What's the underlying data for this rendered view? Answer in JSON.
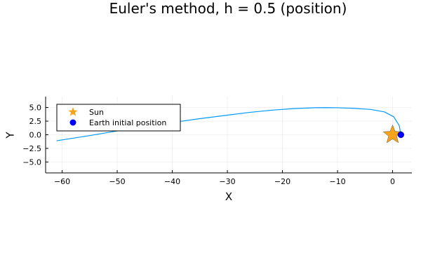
{
  "chart_data": {
    "type": "line",
    "title": "Euler's method, h = 0.5 (position)",
    "xlabel": "X",
    "ylabel": "Y",
    "xlim": [
      -63,
      3.5
    ],
    "ylim": [
      -7,
      7
    ],
    "xticks": [
      -60,
      -50,
      -40,
      -30,
      -20,
      -10,
      0
    ],
    "xtick_labels": [
      "−60",
      "−50",
      "−40",
      "−30",
      "−20",
      "−10",
      "0"
    ],
    "yticks": [
      -5.0,
      -2.5,
      0.0,
      2.5,
      5.0
    ],
    "ytick_labels": [
      "−5.0",
      "−2.5",
      "0.0",
      "2.5",
      "5.0"
    ],
    "grid": true,
    "legend_position": "top-left",
    "series": [
      {
        "kind": "line",
        "color": "#009AFA",
        "x": [
          1.5,
          1.2,
          0.2,
          -1.5,
          -4,
          -7,
          -10,
          -12,
          -14,
          -18,
          -22,
          -26,
          -30,
          -35,
          -40,
          -45,
          -50,
          -55,
          -61
        ],
        "y": [
          0.0,
          1.7,
          3.3,
          4.2,
          4.65,
          4.85,
          4.95,
          4.98,
          4.96,
          4.8,
          4.5,
          4.1,
          3.6,
          2.95,
          2.25,
          1.5,
          0.7,
          -0.15,
          -1.1
        ]
      },
      {
        "kind": "marker",
        "name": "Sun",
        "marker": "star",
        "color": "#F5A31A",
        "x": [
          0
        ],
        "y": [
          0
        ]
      },
      {
        "kind": "marker",
        "name": "Earth initial position",
        "marker": "circle",
        "color": "#0000FF",
        "x": [
          1.5
        ],
        "y": [
          0
        ]
      }
    ]
  }
}
